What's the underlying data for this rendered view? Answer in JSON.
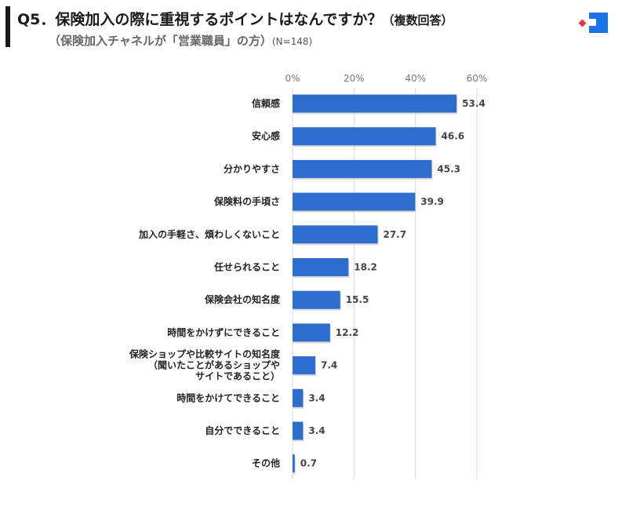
{
  "header": {
    "title": "Q5．保険加入の際に重視するポイントはなんですか？",
    "title_suffix": "（複数回答）",
    "subtitle": "（保険加入チャネルが「営業職員」の方）",
    "sample": "(N=148)"
  },
  "colors": {
    "bar": "#2e6dcc",
    "grid": "#d8d8d8",
    "logo_blue": "#1a73e8",
    "logo_red": "#e8304a"
  },
  "chart_data": {
    "type": "bar",
    "orientation": "horizontal",
    "categories": [
      [
        "信頼感"
      ],
      [
        "安心感"
      ],
      [
        "分かりやすさ"
      ],
      [
        "保険料の手頃さ"
      ],
      [
        "加入の手軽さ、煩わしくないこと"
      ],
      [
        "任せられること"
      ],
      [
        "保険会社の知名度"
      ],
      [
        "時間をかけずにできること"
      ],
      [
        "保険ショップや比較サイトの知名度",
        "（聞いたことがあるショップや",
        "サイトであること）"
      ],
      [
        "時間をかけてできること"
      ],
      [
        "自分でできること"
      ],
      [
        "その他"
      ]
    ],
    "values": [
      53.4,
      46.6,
      45.3,
      39.9,
      27.7,
      18.2,
      15.5,
      12.2,
      7.4,
      3.4,
      3.4,
      0.7
    ],
    "value_labels": [
      "53.4",
      "46.6",
      "45.3",
      "39.9",
      "27.7",
      "18.2",
      "15.5",
      "12.2",
      "7.4",
      "3.4",
      "3.4",
      "0.7"
    ],
    "xlim": [
      0,
      60
    ],
    "xticks": [
      0,
      20,
      40,
      60
    ],
    "xtick_labels": [
      "0%",
      "20%",
      "40%",
      "60%"
    ],
    "grid": true
  }
}
